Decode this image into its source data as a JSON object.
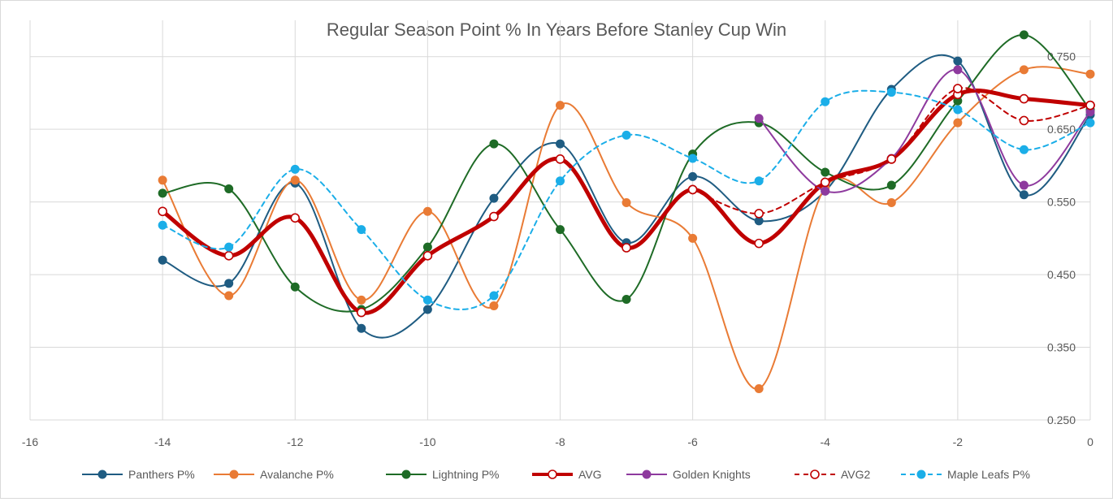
{
  "chart_data": {
    "type": "scatter",
    "title": "Regular Season Point % In Years Before Stanley Cup Win",
    "xlim": [
      -16,
      0
    ],
    "ylim": [
      0.25,
      0.8
    ],
    "x_ticks": [
      "-16",
      "-14",
      "-12",
      "-10",
      "-8",
      "-6",
      "-4",
      "-2",
      "0"
    ],
    "y_ticks": [
      "0.250",
      "0.350",
      "0.450",
      "0.550",
      "0.650",
      "0.750"
    ],
    "grid": "vertical and horizontal",
    "legend_position": "bottom",
    "series": [
      {
        "name": "Panthers P%",
        "color": "#1F5C82",
        "dashed": false,
        "hollow": false,
        "width": 2,
        "x": [
          -14,
          -13,
          -12,
          -11,
          -10,
          -9,
          -8,
          -7,
          -6,
          -5,
          -4,
          -3,
          -2,
          -1,
          0
        ],
        "y": [
          0.47,
          0.438,
          0.576,
          0.376,
          0.402,
          0.555,
          0.63,
          0.494,
          0.585,
          0.524,
          0.565,
          0.705,
          0.744,
          0.56,
          0.67
        ]
      },
      {
        "name": "Avalanche P%",
        "color": "#E97B35",
        "dashed": false,
        "hollow": false,
        "width": 2,
        "x": [
          -14,
          -13,
          -12,
          -11,
          -10,
          -9,
          -8,
          -7,
          -6,
          -5,
          -4,
          -3,
          -2,
          -1,
          0
        ],
        "y": [
          0.58,
          0.421,
          0.58,
          0.415,
          0.537,
          0.407,
          0.683,
          0.549,
          0.5,
          0.293,
          0.57,
          0.549,
          0.659,
          0.732,
          0.726
        ]
      },
      {
        "name": "Lightning P%",
        "color": "#1E6B26",
        "dashed": false,
        "hollow": false,
        "width": 2,
        "x": [
          -14,
          -13,
          -12,
          -11,
          -10,
          -9,
          -8,
          -7,
          -6,
          -5,
          -4,
          -3,
          -2,
          -1,
          0
        ],
        "y": [
          0.562,
          0.568,
          0.433,
          0.402,
          0.488,
          0.63,
          0.512,
          0.416,
          0.616,
          0.659,
          0.591,
          0.573,
          0.689,
          0.78,
          0.677
        ]
      },
      {
        "name": "AVG",
        "color": "#C00000",
        "dashed": false,
        "hollow": true,
        "width": 5,
        "x": [
          -14,
          -13,
          -12,
          -11,
          -10,
          -9,
          -8,
          -7,
          -6,
          -5,
          -4,
          -3,
          -2,
          -1,
          0
        ],
        "y": [
          0.537,
          0.476,
          0.528,
          0.398,
          0.476,
          0.53,
          0.609,
          0.487,
          0.567,
          0.493,
          0.577,
          0.609,
          0.698,
          0.692,
          0.683
        ]
      },
      {
        "name": "Golden Knights",
        "color": "#8E3A9E",
        "dashed": false,
        "hollow": false,
        "width": 2,
        "x": [
          -5,
          -4,
          -3,
          -2,
          -1,
          0
        ],
        "y": [
          0.665,
          0.565,
          0.61,
          0.732,
          0.573,
          0.674
        ]
      },
      {
        "name": "AVG2",
        "color": "#C00000",
        "dashed": true,
        "hollow": true,
        "width": 2,
        "x": [
          -6,
          -5,
          -4,
          -3,
          -2,
          -1,
          0
        ],
        "y": [
          0.567,
          0.534,
          0.577,
          0.609,
          0.706,
          0.662,
          0.683
        ]
      },
      {
        "name": "Maple Leafs P%",
        "color": "#1BAEE8",
        "dashed": true,
        "hollow": false,
        "width": 2,
        "x": [
          -14,
          -13,
          -12,
          -11,
          -10,
          -9,
          -8,
          -7,
          -6,
          -5,
          -4,
          -3,
          -2,
          -1,
          0
        ],
        "y": [
          0.518,
          0.488,
          0.595,
          0.512,
          0.415,
          0.421,
          0.579,
          0.642,
          0.61,
          0.579,
          0.688,
          0.701,
          0.677,
          0.622,
          0.659
        ]
      }
    ]
  }
}
